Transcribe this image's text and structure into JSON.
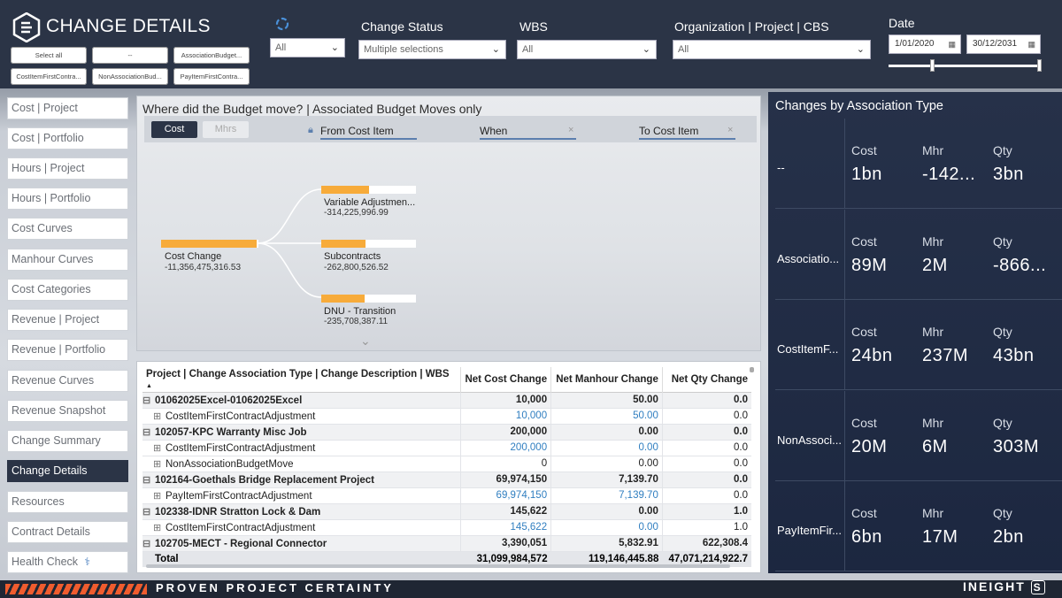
{
  "header": {
    "title": "CHANGE DETAILS",
    "chips": [
      "Select all",
      "--",
      "AssociationBudget...",
      "CostItemFirstContra...",
      "NonAssociationBud...",
      "PayItemFirstContra..."
    ],
    "filters": [
      {
        "label": "",
        "value": "All"
      },
      {
        "label": "Change Status",
        "value": "Multiple selections"
      },
      {
        "label": "WBS",
        "value": "All"
      },
      {
        "label": "Organization | Project | CBS",
        "value": "All"
      }
    ],
    "date": {
      "label": "Date",
      "from": "1/01/2020",
      "to": "30/12/2031"
    }
  },
  "nav": {
    "items": [
      "Cost | Project",
      "Cost | Portfolio",
      "Hours | Project",
      "Hours | Portfolio",
      "Cost Curves",
      "Manhour Curves",
      "Cost Categories",
      "Revenue | Project",
      "Revenue | Portfolio",
      "Revenue Curves",
      "Revenue Snapshot",
      "Change Summary",
      "Change Details",
      "Resources",
      "Contract Details",
      "Health Check"
    ],
    "active": "Change Details"
  },
  "decomp": {
    "title": "Where did the Budget move? | Associated Budget Moves only",
    "toggle": [
      "Cost",
      "Mhrs"
    ],
    "levels": [
      "From Cost Item",
      "When",
      "To Cost Item"
    ],
    "root": {
      "name": "Cost Change",
      "value": "-11,356,475,316.53",
      "fill": 0.98
    },
    "children": [
      {
        "name": "Variable Adjustmen...",
        "value": "-314,225,996.99",
        "fill": 0.5
      },
      {
        "name": "Subcontracts",
        "value": "-262,800,526.52",
        "fill": 0.47
      },
      {
        "name": "DNU - Transition",
        "value": "-235,708,387.11",
        "fill": 0.46
      }
    ]
  },
  "table": {
    "headers": [
      "Project | Change Association Type | Change Description | WBS",
      "Net Cost Change",
      "Net Manhour Change",
      "Net Qty Change"
    ],
    "rows": [
      {
        "type": "grp",
        "name": "01062025Excel-01062025Excel",
        "cost": "10,000",
        "mhr": "50.00",
        "qty": "0.0"
      },
      {
        "type": "sub",
        "name": "CostItemFirstContractAdjustment",
        "cost": "10,000",
        "mhr": "50.00",
        "qty": "0.0",
        "blue": true
      },
      {
        "type": "grp",
        "name": "102057-KPC Warranty Misc Job",
        "cost": "200,000",
        "mhr": "0.00",
        "qty": "0.0"
      },
      {
        "type": "sub",
        "name": "CostItemFirstContractAdjustment",
        "cost": "200,000",
        "mhr": "0.00",
        "qty": "0.0",
        "blue": true
      },
      {
        "type": "sub",
        "name": "NonAssociationBudgetMove",
        "cost": "0",
        "mhr": "0.00",
        "qty": "0.0"
      },
      {
        "type": "grp",
        "name": "102164-Goethals Bridge Replacement Project",
        "cost": "69,974,150",
        "mhr": "7,139.70",
        "qty": "0.0"
      },
      {
        "type": "sub",
        "name": "PayItemFirstContractAdjustment",
        "cost": "69,974,150",
        "mhr": "7,139.70",
        "qty": "0.0",
        "blue": true
      },
      {
        "type": "grp",
        "name": "102338-IDNR Stratton Lock & Dam",
        "cost": "145,622",
        "mhr": "0.00",
        "qty": "1.0"
      },
      {
        "type": "sub",
        "name": "CostItemFirstContractAdjustment",
        "cost": "145,622",
        "mhr": "0.00",
        "qty": "1.0",
        "blue": true
      },
      {
        "type": "grp",
        "name": "102705-MECT - Regional Connector",
        "cost": "3,390,051",
        "mhr": "5,832.91",
        "qty": "622,308.4"
      }
    ],
    "total": {
      "name": "Total",
      "cost": "31,099,984,572",
      "mhr": "119,146,445.88",
      "qty": "47,071,214,922.7"
    }
  },
  "assoc": {
    "title": "Changes by Association Type",
    "labels": [
      "Cost",
      "Mhr",
      "Qty"
    ],
    "rows": [
      {
        "name": "--",
        "cost": "1bn",
        "mhr": "-142...",
        "qty": "3bn"
      },
      {
        "name": "Associatio...",
        "cost": "89M",
        "mhr": "2M",
        "qty": "-866..."
      },
      {
        "name": "CostItemF...",
        "cost": "24bn",
        "mhr": "237M",
        "qty": "43bn"
      },
      {
        "name": "NonAssoci...",
        "cost": "20M",
        "mhr": "6M",
        "qty": "303M"
      },
      {
        "name": "PayItemFir...",
        "cost": "6bn",
        "mhr": "17M",
        "qty": "2bn"
      }
    ]
  },
  "footer": {
    "tagline": "PROVEN PROJECT CERTAINTY",
    "brand": "INEIGHT"
  },
  "colors": {
    "navy": "#2b3446",
    "orange": "#f7ab3a",
    "blue_link": "#2f7ec0",
    "stripe": "#ef5c2e"
  }
}
